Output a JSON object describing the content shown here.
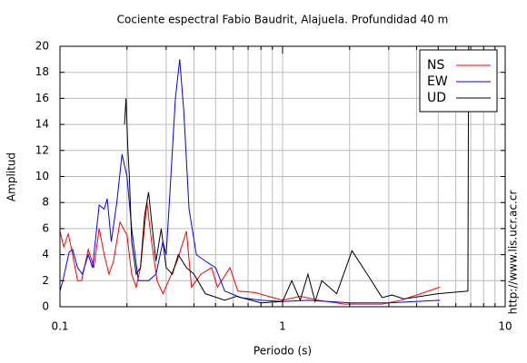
{
  "chart_data": {
    "type": "line",
    "title": "Cociente espectral Fabio Baudrit, Alajuela. Profundidad 40 m",
    "x_label": "Periodo (s)",
    "y_label": "Amplitud",
    "side_note": "http://www.lis.ucr.ac.cr",
    "x_scale": "log",
    "xlim": [
      0.1,
      10
    ],
    "xticks": [
      0.1,
      1,
      10
    ],
    "xminorticks": [
      0.2,
      0.3,
      0.4,
      0.5,
      0.6,
      0.7,
      0.8,
      0.9,
      2,
      3,
      4,
      5,
      6,
      7,
      8,
      9
    ],
    "ylim": [
      0,
      20
    ],
    "yticks": [
      0,
      2,
      4,
      6,
      8,
      10,
      12,
      14,
      16,
      18,
      20
    ],
    "grid": true,
    "legend": "top-right",
    "series": [
      {
        "name": "NS",
        "color": "#ff0000",
        "x": [
          0.1,
          0.104,
          0.109,
          0.114,
          0.12,
          0.125,
          0.134,
          0.142,
          0.15,
          0.158,
          0.166,
          0.174,
          0.186,
          0.2,
          0.21,
          0.22,
          0.23,
          0.246,
          0.258,
          0.273,
          0.29,
          0.336,
          0.37,
          0.39,
          0.43,
          0.48,
          0.51,
          0.58,
          0.63,
          0.75,
          1,
          1.2,
          1.45,
          1.9,
          2.8,
          3.4,
          5.1
        ],
        "values": [
          5.8,
          4.6,
          5.6,
          4,
          2,
          2,
          4.4,
          3,
          6,
          4,
          2.5,
          3.5,
          6.5,
          5.5,
          2.5,
          1.5,
          3,
          8,
          5,
          2,
          1,
          3.5,
          5.8,
          1.5,
          2.5,
          3,
          1.5,
          3,
          1.2,
          1.1,
          0.5,
          0.8,
          0.5,
          0.2,
          0.2,
          0.5,
          1.5
        ]
      },
      {
        "name": "EW",
        "color": "#0000ff",
        "x": [
          0.1,
          0.103,
          0.11,
          0.114,
          0.12,
          0.126,
          0.134,
          0.14,
          0.15,
          0.158,
          0.163,
          0.17,
          0.18,
          0.19,
          0.2,
          0.21,
          0.225,
          0.25,
          0.27,
          0.29,
          0.3,
          0.31,
          0.33,
          0.345,
          0.36,
          0.38,
          0.41,
          0.45,
          0.5,
          0.55,
          0.65,
          0.8,
          1,
          1.3,
          2,
          3,
          5.1
        ],
        "values": [
          1.2,
          2,
          4.2,
          4.4,
          3,
          2.5,
          4,
          3,
          7.8,
          7.5,
          8.3,
          5,
          8,
          11.7,
          10,
          6,
          2,
          2,
          2.5,
          5,
          4,
          8,
          16,
          19,
          15,
          7.5,
          4,
          3.5,
          3,
          1.2,
          0.7,
          0.5,
          0.4,
          0.5,
          0.3,
          0.3,
          0.5
        ]
      },
      {
        "name": "UD",
        "color": "#000000",
        "x": [
          0.195,
          0.198,
          0.202,
          0.205,
          0.21,
          0.22,
          0.23,
          0.24,
          0.25,
          0.26,
          0.27,
          0.285,
          0.3,
          0.32,
          0.34,
          0.37,
          0.4,
          0.45,
          0.55,
          0.62,
          0.8,
          1,
          1.1,
          1.2,
          1.3,
          1.4,
          1.5,
          1.75,
          2.05,
          2.4,
          2.8,
          3.1,
          3.5,
          5,
          6.8,
          6.85
        ],
        "values": [
          14,
          16,
          12,
          10,
          5,
          2.5,
          3,
          7,
          8.8,
          6,
          3.5,
          6,
          3,
          2.5,
          4,
          3,
          2.5,
          1,
          0.5,
          0.8,
          0.3,
          0.4,
          2,
          0.5,
          2.5,
          0.4,
          2,
          1,
          4.3,
          2.5,
          0.7,
          0.9,
          0.6,
          1,
          1.2,
          20
        ]
      }
    ]
  }
}
